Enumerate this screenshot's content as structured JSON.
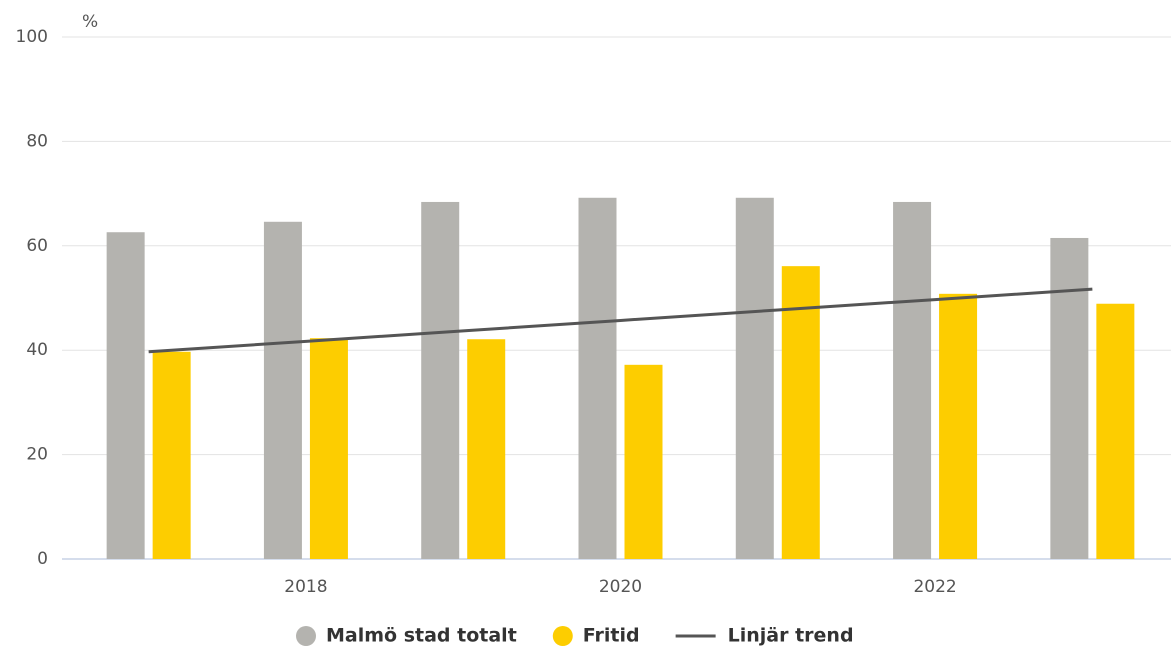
{
  "chart_data": {
    "type": "bar",
    "y_unit_label": "%",
    "categories": [
      null,
      "2018",
      null,
      "2020",
      null,
      "2022",
      null
    ],
    "series": [
      {
        "name": "Malmö stad totalt",
        "color": "#b4b3af",
        "values": [
          62.6,
          64.6,
          68.4,
          69.2,
          69.2,
          68.4,
          61.5
        ]
      },
      {
        "name": "Fritid",
        "color": "#fdcd00",
        "values": [
          39.7,
          42.3,
          42.1,
          37.2,
          56.1,
          50.8,
          48.9
        ]
      },
      {
        "name": "Linjär trend",
        "color": "#555555",
        "type": "line",
        "values": [
          39.7,
          41.7,
          43.7,
          45.7,
          47.7,
          49.7,
          51.7
        ]
      }
    ],
    "ylim": [
      0,
      100
    ],
    "yticks": [
      0,
      20,
      40,
      60,
      80,
      100
    ],
    "grid": true,
    "legend": "bottom"
  }
}
